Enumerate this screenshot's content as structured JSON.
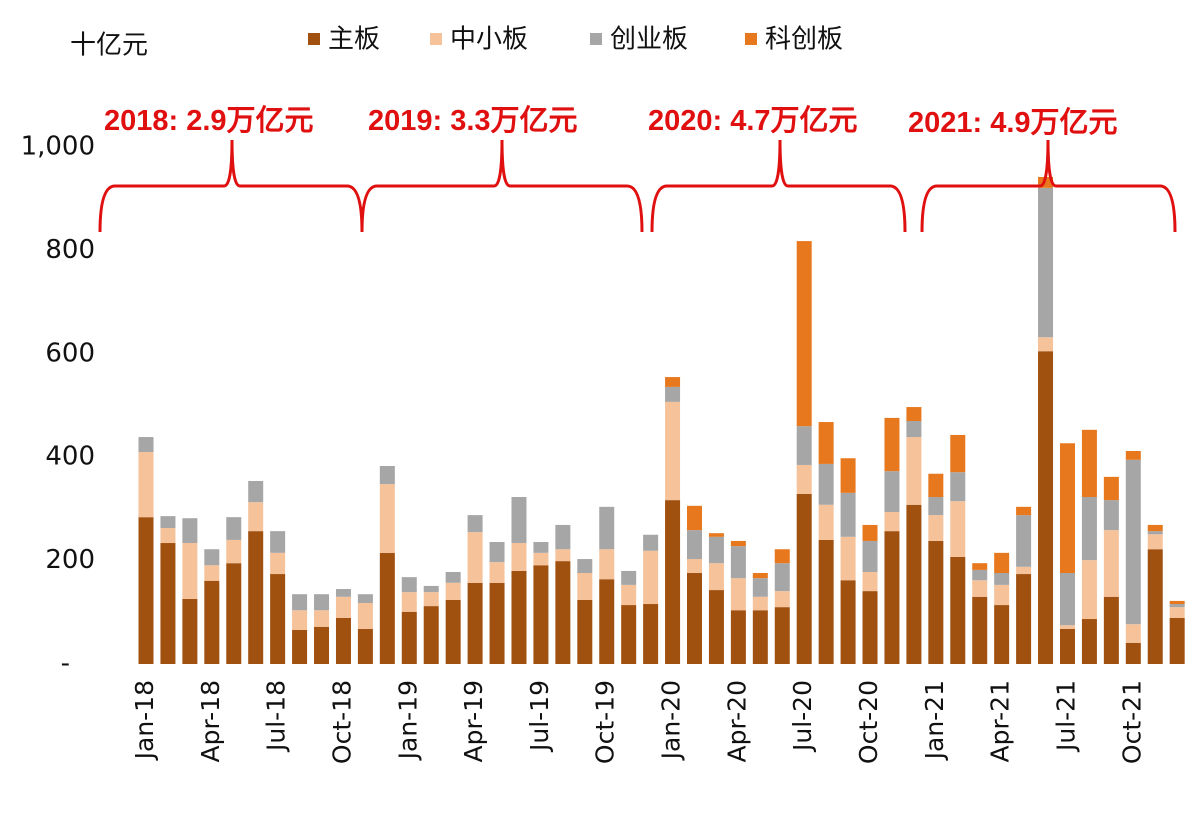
{
  "chart_data": {
    "type": "stacked_bar",
    "y_label": "十亿元",
    "annotations": [
      "2018: 2.9万亿元",
      "2019: 3.3万亿元",
      "2020: 4.7万亿元",
      "2021: 4.9万亿元"
    ],
    "categories": [
      "Jan-18",
      null,
      null,
      "Apr-18",
      null,
      null,
      "Jul-18",
      null,
      null,
      "Oct-18",
      null,
      null,
      "Jan-19",
      null,
      null,
      "Apr-19",
      null,
      null,
      "Jul-19",
      null,
      null,
      "Oct-19",
      null,
      null,
      "Jan-20",
      null,
      null,
      "Apr-20",
      null,
      null,
      "Jul-20",
      null,
      null,
      "Oct-20",
      null,
      null,
      "Jan-21",
      null,
      null,
      "Apr-21",
      null,
      null,
      "Jul-21",
      null,
      null,
      "Oct-21",
      null,
      null
    ],
    "series": [
      {
        "name": "主板",
        "color": "#a0500f",
        "values": [
          284,
          234,
          126,
          161,
          195,
          257,
          174,
          66,
          72,
          89,
          68,
          215,
          101,
          112,
          124,
          157,
          157,
          180,
          191,
          199,
          124,
          164,
          114,
          116,
          317,
          176,
          143,
          104,
          104,
          110,
          329,
          240,
          162,
          141,
          257,
          308,
          238,
          207,
          130,
          114,
          174,
          605,
          68,
          87,
          130,
          41,
          222,
          89
        ]
      },
      {
        "name": "中小板",
        "color": "#f5c29a",
        "values": [
          126,
          29,
          108,
          30,
          45,
          56,
          41,
          38,
          32,
          41,
          50,
          133,
          38,
          27,
          33,
          98,
          40,
          54,
          24,
          23,
          52,
          58,
          39,
          103,
          190,
          27,
          52,
          62,
          26,
          31,
          56,
          68,
          84,
          37,
          37,
          131,
          50,
          108,
          32,
          39,
          14,
          27,
          7,
          114,
          129,
          36,
          29,
          21
        ]
      },
      {
        "name": "创业板",
        "color": "#a6a6a6",
        "values": [
          29,
          23,
          48,
          31,
          44,
          41,
          42,
          31,
          31,
          15,
          17,
          35,
          29,
          12,
          21,
          33,
          39,
          89,
          21,
          47,
          27,
          82,
          27,
          31,
          29,
          56,
          51,
          62,
          36,
          54,
          75,
          79,
          85,
          60,
          79,
          31,
          35,
          56,
          20,
          23,
          100,
          289,
          101,
          122,
          58,
          318,
          6,
          6
        ]
      },
      {
        "name": "科创板",
        "color": "#e8781e",
        "values": [
          0,
          0,
          0,
          0,
          0,
          0,
          0,
          0,
          0,
          0,
          0,
          0,
          0,
          0,
          0,
          0,
          0,
          0,
          0,
          0,
          0,
          0,
          0,
          0,
          19,
          47,
          7,
          10,
          10,
          27,
          358,
          81,
          67,
          31,
          103,
          27,
          45,
          72,
          13,
          39,
          16,
          21,
          251,
          130,
          45,
          17,
          12,
          6
        ]
      }
    ],
    "ylim": [
      0,
      1000
    ],
    "yticks": [
      {
        "value": 0,
        "label": "-"
      },
      200,
      400,
      600,
      800,
      {
        "value": 1000,
        "label": "1,000"
      }
    ]
  }
}
